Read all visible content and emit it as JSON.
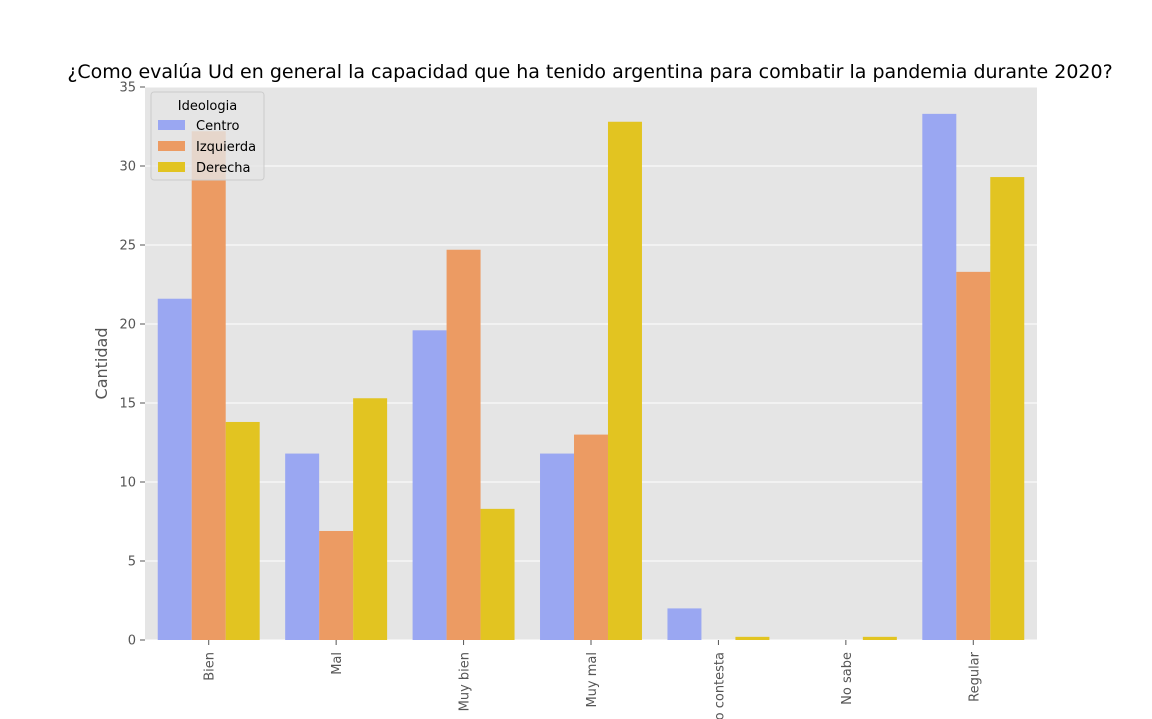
{
  "chart_data": {
    "type": "bar",
    "title": "¿Como evalúa Ud en general la capacidad que ha tenido argentina para combatir la pandemia durante 2020?",
    "xlabel": "",
    "ylabel": "Cantidad",
    "categories": [
      "Bien",
      "Mal",
      "Muy bien",
      "Muy mal",
      "No contesta",
      "No sabe",
      "Regular"
    ],
    "series": [
      {
        "name": "Centro",
        "color": "#9aa7f2",
        "values": [
          21.6,
          11.8,
          19.6,
          11.8,
          2.0,
          0.0,
          33.3
        ]
      },
      {
        "name": "Izquierda",
        "color": "#ec9b63",
        "values": [
          32.2,
          6.9,
          24.7,
          13.0,
          0.0,
          0.0,
          23.3
        ]
      },
      {
        "name": "Derecha",
        "color": "#e2c421",
        "values": [
          13.8,
          15.3,
          8.3,
          32.8,
          0.2,
          0.2,
          29.3
        ]
      }
    ],
    "ylim": [
      0,
      35
    ],
    "yticks": [
      0,
      5,
      10,
      15,
      20,
      25,
      30,
      35
    ],
    "grid": true,
    "legend": {
      "title": "Ideologia",
      "placement": "top-left"
    }
  },
  "colors": {
    "plot_background": "#e5e5e5",
    "grid": "#ffffff",
    "tick_text": "#555555"
  }
}
